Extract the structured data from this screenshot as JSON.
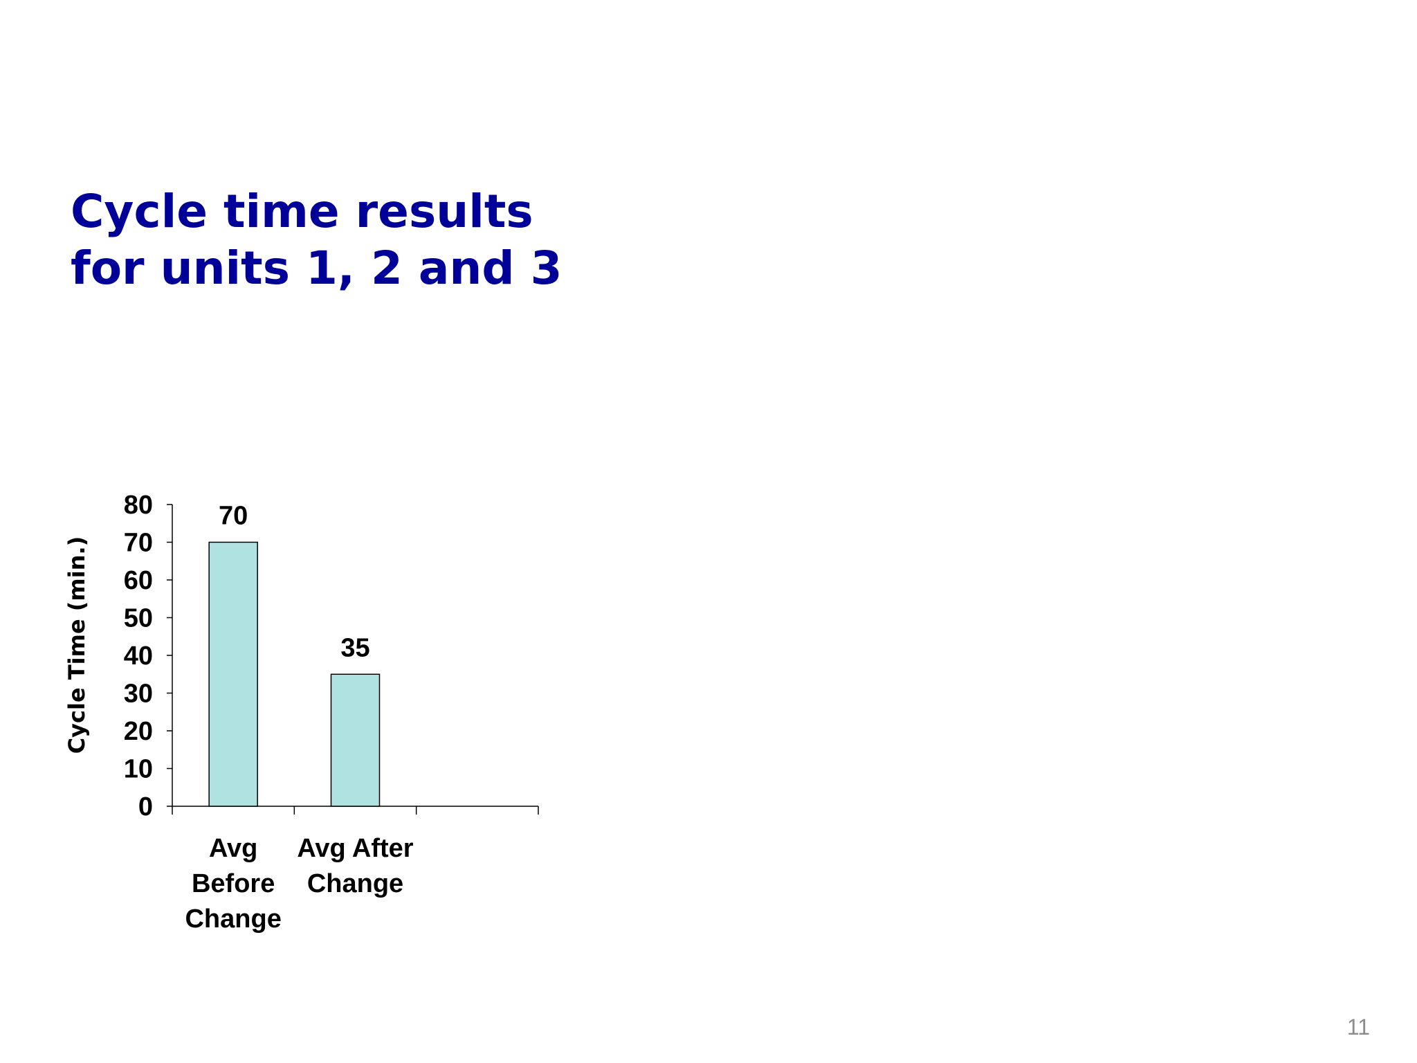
{
  "slide": {
    "title_lines": [
      "Cycle time results",
      "for units 1, 2 and 3"
    ],
    "page_number": "11"
  },
  "colors": {
    "title": "#000099",
    "bar_fill": "#b0e2e2",
    "bar_stroke": "#000000",
    "text": "#000000",
    "page_number": "#8c8c8c"
  },
  "chart_data": {
    "type": "bar",
    "categories": [
      [
        "Avg",
        "Before",
        "Change"
      ],
      [
        "Avg After",
        "Change"
      ],
      [
        ""
      ]
    ],
    "values": [
      70,
      35,
      null
    ],
    "data_labels": [
      "70",
      "35",
      ""
    ],
    "ylabel": "Cycle Time (min.)",
    "xlabel": "",
    "ylim": [
      0,
      80
    ],
    "yticks": [
      0,
      10,
      20,
      30,
      40,
      50,
      60,
      70,
      80
    ],
    "grid": false,
    "legend": "none"
  }
}
